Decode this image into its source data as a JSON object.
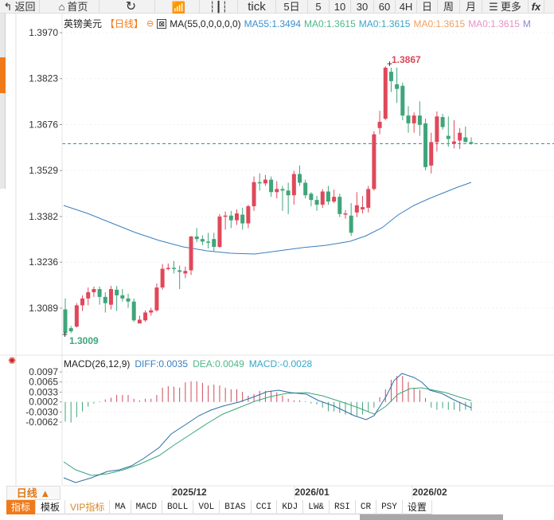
{
  "toolbar": {
    "back": "返回",
    "home": "首页",
    "items": [
      "tick",
      "5日",
      "5",
      "10",
      "30",
      "60",
      "4H",
      "日",
      "周",
      "月"
    ],
    "more": "更多"
  },
  "legend": {
    "symbol": "英镑美元",
    "period": "【日线】",
    "ma_label": "MA(55,0,0,0,0,0)",
    "ma55": "MA55:1.3494",
    "ma0_1": "MA0:1.3615",
    "ma0_2": "MA0:1.3615",
    "ma0_3": "MA0:1.3615",
    "ma0_4": "MA0:1.3615",
    "ma0_5": "M"
  },
  "macd_legend": {
    "title": "MACD(26,12,9)",
    "diff": "DIFF:0.0035",
    "dea": "DEA:0.0049",
    "macd": "MACD:-0.0028"
  },
  "colors": {
    "up": "#e0485a",
    "down": "#3fa57a",
    "ma55": "#3a7fc0",
    "diff": "#2e6ea6",
    "dea": "#3aa57a",
    "accent": "#f07a1a",
    "last_price_line": "#2a86a8"
  },
  "bottom": {
    "period_button": "日线 ▲",
    "tabs": [
      "指标",
      "模板",
      "VIP指标",
      "MA",
      "MACD",
      "BOLL",
      "VOL",
      "BIAS",
      "CCI",
      "KDJ",
      "LW&",
      "RSI",
      "CR",
      "PSY",
      "设置"
    ]
  },
  "chart_data": [
    {
      "type": "candlestick",
      "title": "英镑美元 日线",
      "ylabel": "",
      "yticks": [
        1.397,
        1.3823,
        1.3676,
        1.3529,
        1.3382,
        1.3236,
        1.3089
      ],
      "ylim": [
        1.2995,
        1.3985
      ],
      "xticks": [
        "2025/12",
        "2026/01",
        "2026/02"
      ],
      "annotations": {
        "high": "1.3867",
        "low": "1.3009",
        "last_price": 1.3615
      },
      "series": [
        {
          "name": "MA55",
          "value_last": 1.3494
        }
      ],
      "candles": [
        [
          1.3085,
          1.312,
          1.3008,
          1.3009
        ],
        [
          1.3025,
          1.3032,
          1.3009,
          1.3015
        ],
        [
          1.303,
          1.3105,
          1.3027,
          1.3098
        ],
        [
          1.3098,
          1.313,
          1.308,
          1.312
        ],
        [
          1.312,
          1.3155,
          1.3098,
          1.314
        ],
        [
          1.314,
          1.3158,
          1.3125,
          1.315
        ],
        [
          1.315,
          1.3158,
          1.31,
          1.3125
        ],
        [
          1.3125,
          1.314,
          1.3075,
          1.3105
        ],
        [
          1.31,
          1.316,
          1.3085,
          1.315
        ],
        [
          1.3148,
          1.316,
          1.308,
          1.313
        ],
        [
          1.313,
          1.315,
          1.311,
          1.312
        ],
        [
          1.312,
          1.3135,
          1.309,
          1.311
        ],
        [
          1.311,
          1.312,
          1.3045,
          1.305
        ],
        [
          1.304,
          1.3065,
          1.3042,
          1.3052
        ],
        [
          1.305,
          1.3082,
          1.3045,
          1.3075
        ],
        [
          1.3075,
          1.309,
          1.3065,
          1.3082
        ],
        [
          1.3082,
          1.3168,
          1.3078,
          1.3155
        ],
        [
          1.3155,
          1.323,
          1.3148,
          1.3215
        ],
        [
          1.3215,
          1.3232,
          1.321,
          1.3218
        ],
        [
          1.3218,
          1.324,
          1.32,
          1.3215
        ],
        [
          1.321,
          1.3225,
          1.315,
          1.3205
        ],
        [
          1.32,
          1.3222,
          1.3185,
          1.3208
        ],
        [
          1.321,
          1.332,
          1.3195,
          1.3318
        ],
        [
          1.3318,
          1.3345,
          1.33,
          1.331
        ],
        [
          1.331,
          1.3322,
          1.329,
          1.3302
        ],
        [
          1.3302,
          1.333,
          1.328,
          1.33
        ],
        [
          1.331,
          1.333,
          1.327,
          1.3285
        ],
        [
          1.3285,
          1.339,
          1.3282,
          1.3382
        ],
        [
          1.3382,
          1.3398,
          1.334,
          1.3385
        ],
        [
          1.3385,
          1.34,
          1.3345,
          1.337
        ],
        [
          1.337,
          1.3405,
          1.3355,
          1.3392
        ],
        [
          1.3388,
          1.341,
          1.334,
          1.336
        ],
        [
          1.336,
          1.342,
          1.3345,
          1.3415
        ],
        [
          1.3415,
          1.351,
          1.34,
          1.3492
        ],
        [
          1.3492,
          1.352,
          1.3465,
          1.3488
        ],
        [
          1.3488,
          1.3515,
          1.348,
          1.35
        ],
        [
          1.35,
          1.351,
          1.3445,
          1.346
        ],
        [
          1.346,
          1.3495,
          1.344,
          1.347
        ],
        [
          1.347,
          1.348,
          1.34,
          1.3465
        ],
        [
          1.3465,
          1.349,
          1.339,
          1.345
        ],
        [
          1.345,
          1.3528,
          1.342,
          1.3518
        ],
        [
          1.3518,
          1.3545,
          1.348,
          1.349
        ],
        [
          1.349,
          1.35,
          1.344,
          1.345
        ],
        [
          1.3455,
          1.346,
          1.3415,
          1.3435
        ],
        [
          1.3435,
          1.3448,
          1.34,
          1.342
        ],
        [
          1.342,
          1.347,
          1.341,
          1.3462
        ],
        [
          1.3462,
          1.348,
          1.342,
          1.343
        ],
        [
          1.343,
          1.3468,
          1.3425,
          1.3445
        ],
        [
          1.3445,
          1.3455,
          1.338,
          1.339
        ],
        [
          1.339,
          1.3402,
          1.3375,
          1.3392
        ],
        [
          1.3385,
          1.3425,
          1.332,
          1.333
        ],
        [
          1.3395,
          1.346,
          1.338,
          1.3418
        ],
        [
          1.3405,
          1.3448,
          1.3392,
          1.3412
        ],
        [
          1.341,
          1.348,
          1.3395,
          1.347
        ],
        [
          1.347,
          1.3655,
          1.3465,
          1.3645
        ],
        [
          1.3665,
          1.372,
          1.3645,
          1.3685
        ],
        [
          1.3695,
          1.3862,
          1.369,
          1.3858
        ],
        [
          1.3845,
          1.3858,
          1.378,
          1.3815
        ],
        [
          1.3805,
          1.3858,
          1.3745,
          1.379
        ],
        [
          1.38,
          1.381,
          1.369,
          1.3705
        ],
        [
          1.3705,
          1.3735,
          1.365,
          1.368
        ],
        [
          1.368,
          1.3715,
          1.365,
          1.3705
        ],
        [
          1.3705,
          1.375,
          1.364,
          1.3675
        ],
        [
          1.368,
          1.3695,
          1.353,
          1.354
        ],
        [
          1.3545,
          1.365,
          1.352,
          1.362
        ],
        [
          1.362,
          1.3718,
          1.359,
          1.3702
        ],
        [
          1.37,
          1.371,
          1.366,
          1.3668
        ],
        [
          1.364,
          1.3702,
          1.3605,
          1.363
        ],
        [
          1.3615,
          1.369,
          1.36,
          1.3622
        ],
        [
          1.3625,
          1.3665,
          1.3598,
          1.365
        ],
        [
          1.3635,
          1.367,
          1.362,
          1.362
        ],
        [
          1.362,
          1.3635,
          1.3612,
          1.3615
        ]
      ]
    },
    {
      "type": "macd",
      "title": "MACD(26,12,9)",
      "yticks": [
        0.0097,
        0.0065,
        0.0033,
        0.0002,
        -0.003,
        -0.0062
      ],
      "values_last": {
        "DIFF": 0.0035,
        "DEA": 0.0049,
        "MACD": -0.0028
      }
    }
  ]
}
